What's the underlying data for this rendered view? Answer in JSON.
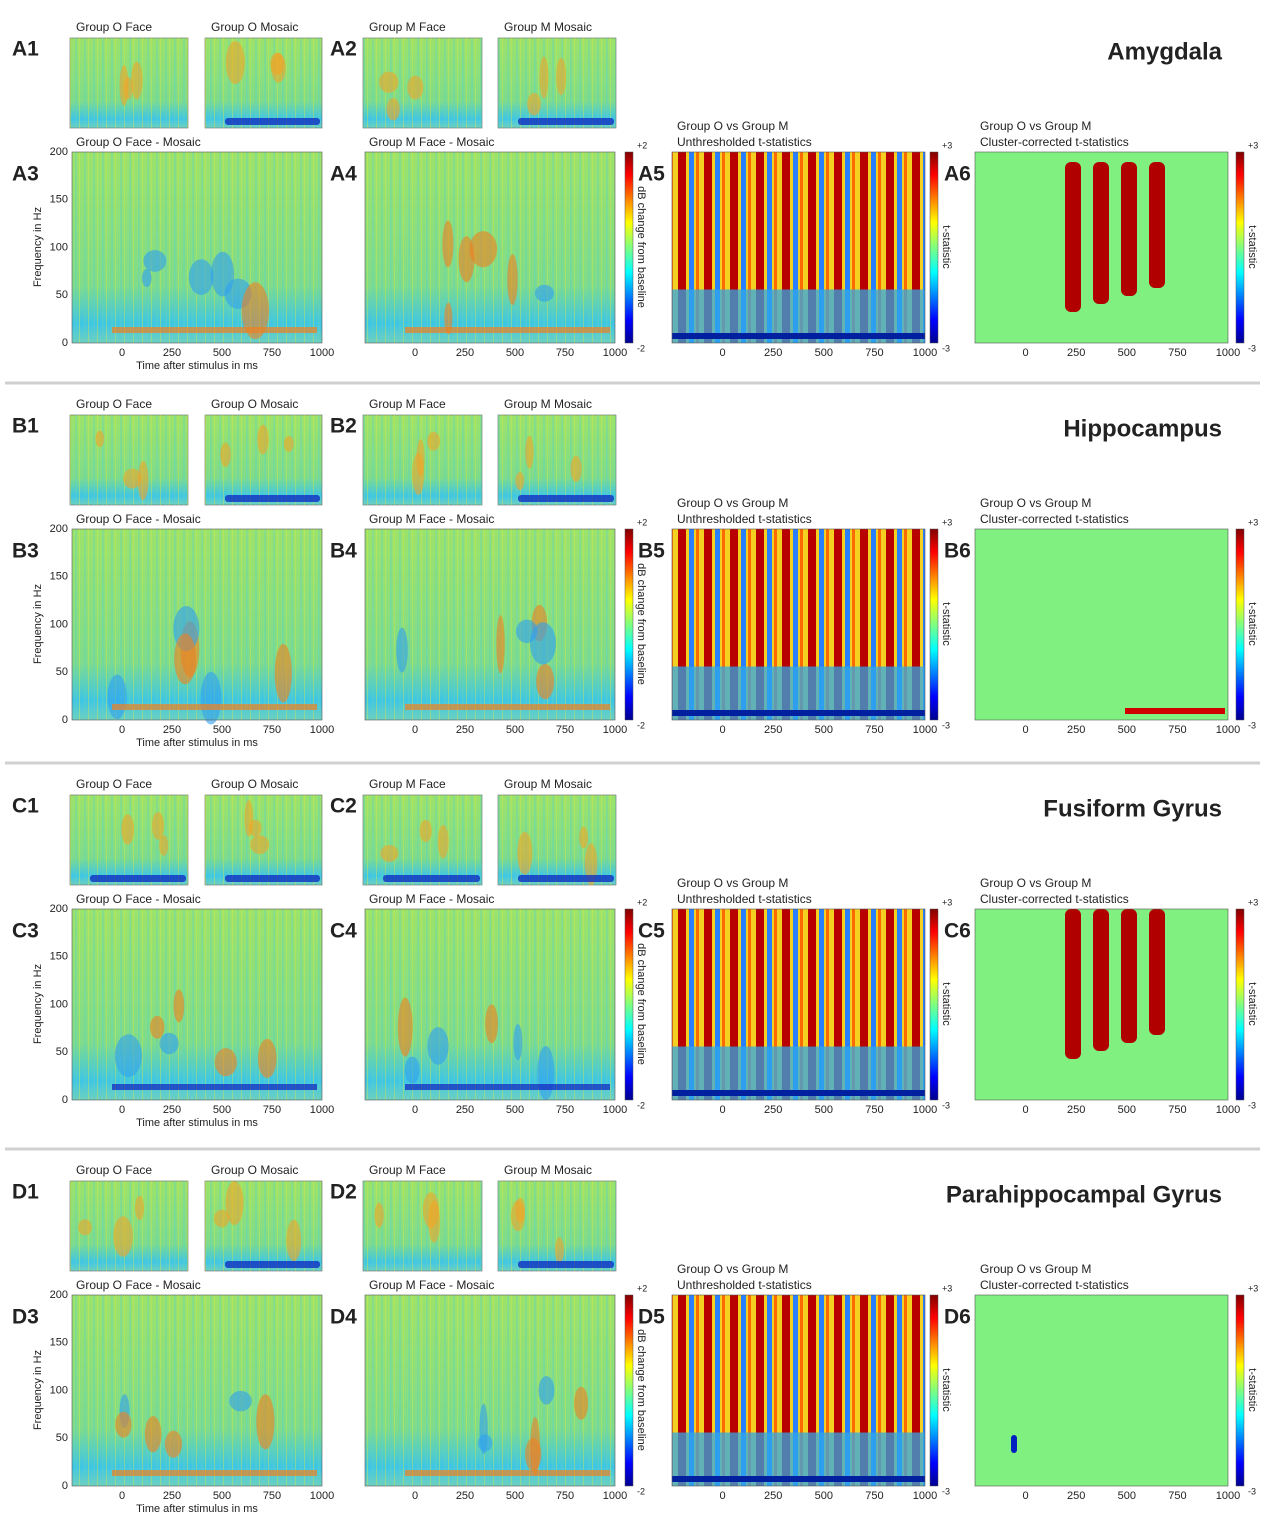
{
  "axes": {
    "y_label": "Frequency in Hz",
    "x_label": "Time after stimulus in ms",
    "yticks": [
      0,
      50,
      100,
      150,
      200
    ],
    "xticks": [
      0,
      250,
      500,
      750,
      1000
    ]
  },
  "titles": {
    "small": [
      "Group O Face",
      "Group O Mosaic",
      "Group M Face",
      "Group M Mosaic"
    ],
    "large": [
      "Group O Face - Mosaic",
      "Group M Face - Mosaic"
    ],
    "comparison": "Group O vs Group M",
    "unthresholded": "Unthresholded t-statistics",
    "cluster": "Cluster-corrected t-statistics"
  },
  "colorbars": {
    "db": {
      "max": "+2",
      "min": "-2",
      "label": "dB change from baseline"
    },
    "t": {
      "max": "+3",
      "min": "-3",
      "label": "t-statistic"
    }
  },
  "rows": [
    {
      "region": "Amygdala",
      "panel_labels": [
        "A1",
        "A2",
        "A3",
        "A4",
        "A5",
        "A6"
      ]
    },
    {
      "region": "Hippocampus",
      "panel_labels": [
        "B1",
        "B2",
        "B3",
        "B4",
        "B5",
        "B6"
      ]
    },
    {
      "region": "Fusiform Gyrus",
      "panel_labels": [
        "C1",
        "C2",
        "C3",
        "C4",
        "C5",
        "C6"
      ]
    },
    {
      "region": "Parahippocampal Gyrus",
      "panel_labels": [
        "D1",
        "D2",
        "D3",
        "D4",
        "D5",
        "D6"
      ]
    }
  ]
}
